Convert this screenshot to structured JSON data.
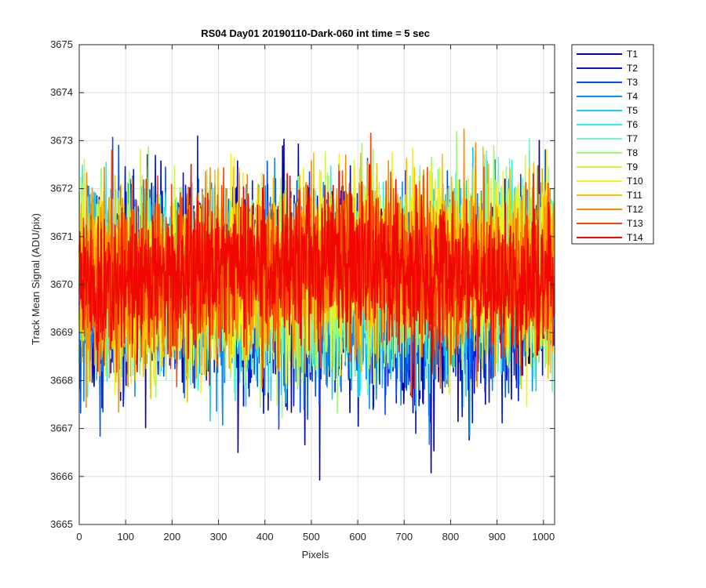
{
  "chart_data": {
    "type": "line",
    "title": "RS04 Day01 20190110-Dark-060 int time = 5 sec",
    "xlabel": "Pixels",
    "ylabel": "Track Mean Signal (ADU/pix)",
    "xlim": [
      0,
      1024
    ],
    "ylim": [
      3665,
      3675
    ],
    "xticks": [
      0,
      100,
      200,
      300,
      400,
      500,
      600,
      700,
      800,
      900,
      1000
    ],
    "yticks": [
      3665,
      3666,
      3667,
      3668,
      3669,
      3670,
      3671,
      3672,
      3673,
      3674,
      3675
    ],
    "grid": true,
    "legend_position": "outside-top-right",
    "x_points": 1024,
    "series": [
      {
        "name": "T1",
        "color": "#0000ad",
        "mean": 3669.8,
        "std": 1.05,
        "min": 3665.4,
        "max": 3673.2
      },
      {
        "name": "T2",
        "color": "#0018d6",
        "mean": 3669.85,
        "std": 1.0,
        "min": 3666.0,
        "max": 3673.1
      },
      {
        "name": "T3",
        "color": "#0050f0",
        "mean": 3669.9,
        "std": 0.95,
        "min": 3665.7,
        "max": 3673.5
      },
      {
        "name": "T4",
        "color": "#0a8cf0",
        "mean": 3670.0,
        "std": 0.95,
        "min": 3665.7,
        "max": 3673.9
      },
      {
        "name": "T5",
        "color": "#18c8f0",
        "mean": 3670.05,
        "std": 0.9,
        "min": 3666.4,
        "max": 3673.5
      },
      {
        "name": "T6",
        "color": "#28f0e8",
        "mean": 3670.1,
        "std": 0.9,
        "min": 3666.7,
        "max": 3673.3
      },
      {
        "name": "T7",
        "color": "#70f8c0",
        "mean": 3670.15,
        "std": 0.9,
        "min": 3666.8,
        "max": 3673.2
      },
      {
        "name": "T8",
        "color": "#9cf878",
        "mean": 3670.2,
        "std": 0.9,
        "min": 3667.0,
        "max": 3673.6
      },
      {
        "name": "T9",
        "color": "#d0f83c",
        "mean": 3670.25,
        "std": 0.9,
        "min": 3667.0,
        "max": 3673.8
      },
      {
        "name": "T10",
        "color": "#f8f018",
        "mean": 3670.3,
        "std": 0.9,
        "min": 3667.2,
        "max": 3673.6
      },
      {
        "name": "T11",
        "color": "#f8c000",
        "mean": 3670.3,
        "std": 0.9,
        "min": 3667.5,
        "max": 3674.1
      },
      {
        "name": "T12",
        "color": "#f88c00",
        "mean": 3670.3,
        "std": 0.85,
        "min": 3665.9,
        "max": 3673.8
      },
      {
        "name": "T13",
        "color": "#f84800",
        "mean": 3670.3,
        "std": 0.8,
        "min": 3667.3,
        "max": 3673.5
      },
      {
        "name": "T14",
        "color": "#f00800",
        "mean": 3670.25,
        "std": 0.75,
        "min": 3667.3,
        "max": 3673.4
      }
    ]
  }
}
